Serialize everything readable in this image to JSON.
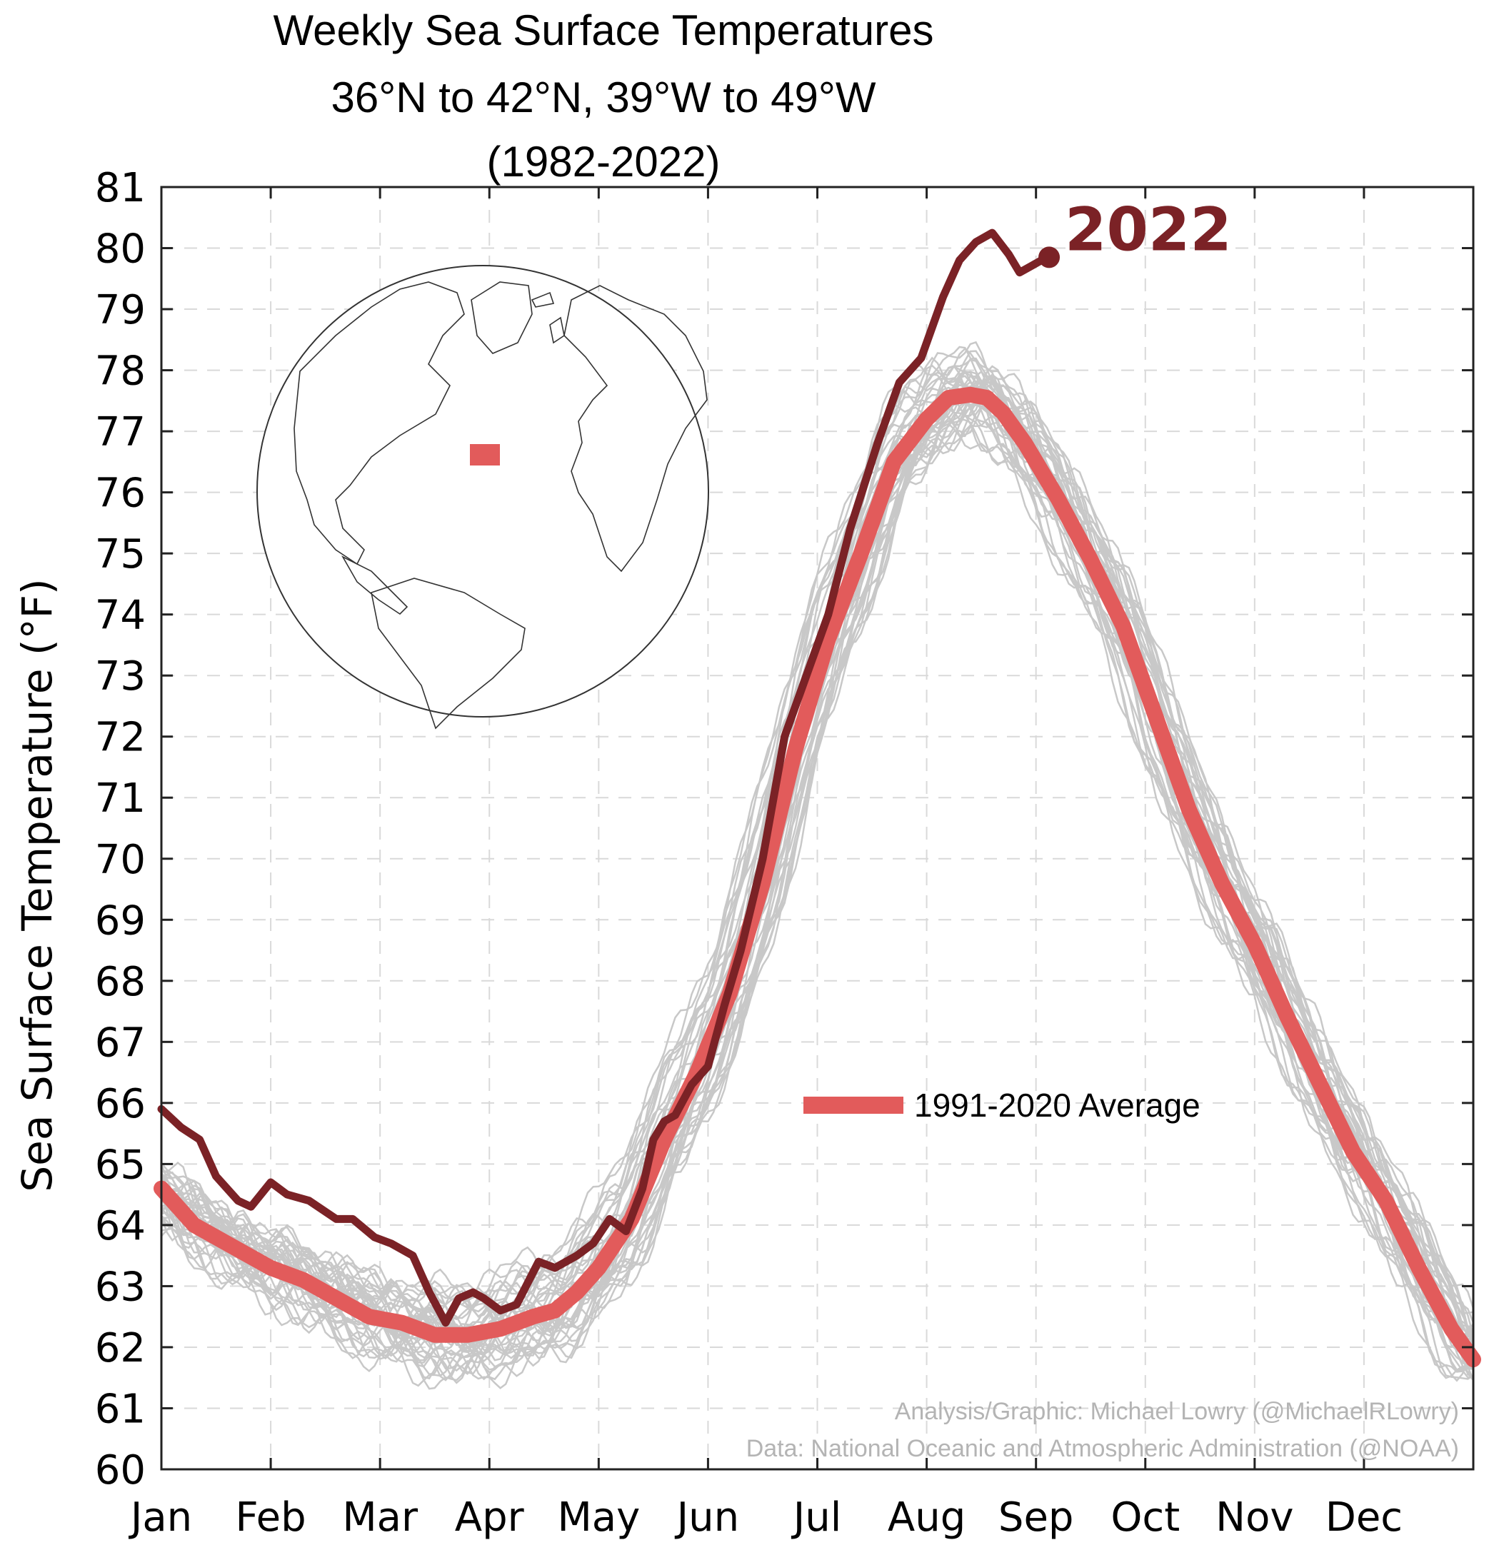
{
  "chart_data": {
    "type": "line",
    "title": "Weekly Sea Surface Temperatures",
    "subtitle_region": "36°N to 42°N, 39°W to 49°W",
    "subtitle_years": "(1982-2022)",
    "ylabel": "Sea Surface Temperature (°F)",
    "xlabel": "",
    "ylim": [
      60,
      81
    ],
    "yticks": [
      60,
      61,
      62,
      63,
      64,
      65,
      66,
      67,
      68,
      69,
      70,
      71,
      72,
      73,
      74,
      75,
      76,
      77,
      78,
      79,
      80,
      81
    ],
    "xlim": [
      0,
      12
    ],
    "xtick_positions": [
      0,
      1,
      2,
      3,
      4,
      5,
      6,
      7,
      8,
      9,
      10,
      11
    ],
    "xticks": [
      "Jan",
      "Feb",
      "Mar",
      "Apr",
      "May",
      "Jun",
      "Jul",
      "Aug",
      "Sep",
      "Oct",
      "Nov",
      "Dec"
    ],
    "grid": true,
    "series": [
      {
        "name": "2022",
        "color": "#7b2226",
        "x": [
          0,
          0.18,
          0.35,
          0.5,
          0.7,
          0.82,
          1.0,
          1.15,
          1.35,
          1.6,
          1.75,
          1.95,
          2.1,
          2.3,
          2.45,
          2.6,
          2.72,
          2.85,
          2.95,
          3.1,
          3.25,
          3.45,
          3.6,
          3.8,
          3.95,
          4.1,
          4.25,
          4.4,
          4.5,
          4.6,
          4.7,
          4.85,
          5.0,
          5.15,
          5.3,
          5.5,
          5.7,
          5.9,
          6.1,
          6.3,
          6.55,
          6.75,
          6.95,
          7.15,
          7.3,
          7.45,
          7.6,
          7.75,
          7.85,
          7.95,
          8.05,
          8.12
        ],
        "values": [
          65.9,
          65.6,
          65.4,
          64.8,
          64.4,
          64.3,
          64.7,
          64.5,
          64.4,
          64.1,
          64.1,
          63.8,
          63.7,
          63.5,
          62.9,
          62.4,
          62.8,
          62.9,
          62.8,
          62.6,
          62.7,
          63.4,
          63.3,
          63.5,
          63.7,
          64.1,
          63.9,
          64.6,
          65.4,
          65.7,
          65.8,
          66.3,
          66.6,
          67.6,
          68.5,
          70.0,
          72.0,
          73.0,
          74.0,
          75.4,
          76.8,
          77.8,
          78.2,
          79.2,
          79.8,
          80.1,
          80.25,
          79.9,
          79.6,
          79.7,
          79.8,
          79.85
        ]
      },
      {
        "name": "1991-2020 Average",
        "color": "#e25b5b",
        "x": [
          0,
          0.3,
          0.6,
          1.0,
          1.3,
          1.6,
          1.9,
          2.2,
          2.5,
          2.8,
          3.1,
          3.4,
          3.6,
          3.8,
          4.0,
          4.3,
          4.6,
          4.9,
          5.2,
          5.5,
          5.8,
          6.1,
          6.4,
          6.7,
          7.0,
          7.2,
          7.4,
          7.55,
          7.7,
          7.9,
          8.2,
          8.5,
          8.8,
          9.1,
          9.4,
          9.7,
          10.0,
          10.3,
          10.6,
          10.9,
          11.2,
          11.5,
          11.8,
          12.0
        ],
        "values": [
          64.6,
          64.0,
          63.7,
          63.3,
          63.1,
          62.8,
          62.5,
          62.4,
          62.2,
          62.2,
          62.3,
          62.5,
          62.6,
          62.9,
          63.3,
          64.1,
          65.4,
          66.5,
          67.8,
          69.6,
          71.8,
          73.6,
          75.0,
          76.5,
          77.2,
          77.55,
          77.6,
          77.55,
          77.3,
          76.8,
          75.9,
          74.9,
          73.8,
          72.3,
          70.8,
          69.6,
          68.6,
          67.4,
          66.3,
          65.2,
          64.4,
          63.3,
          62.3,
          61.8
        ]
      }
    ],
    "background_series_note": "individual years 1982-2021 drawn in light gray",
    "background_color": "#c8c8c8",
    "series_label_2022": "2022",
    "legend_label": "1991-2020 Average",
    "legend_position": "center-right",
    "inset_map": "orthographic globe centered on North Atlantic with red box marking the region",
    "credits": [
      "Analysis/Graphic: Michael Lowry (@MichaelRLowry)",
      "Data: National Oceanic and Atmospheric Administration (@NOAA)"
    ]
  }
}
